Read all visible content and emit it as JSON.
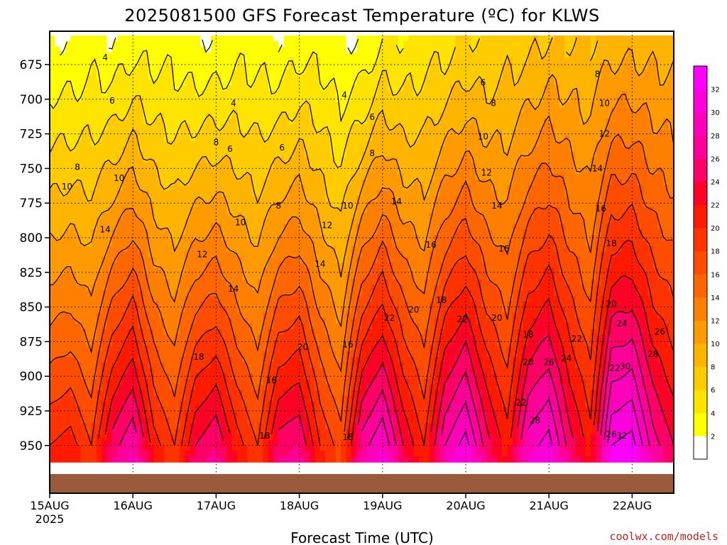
{
  "colors": {
    "ground": "#9c5a3c",
    "background": "#ffffff",
    "credit": "#c41e1e",
    "contour": "#000000",
    "scale": [
      "#ffffff",
      "#ffff00",
      "#ffe400",
      "#ffcc00",
      "#ffb400",
      "#ff9a00",
      "#ff8000",
      "#ff6600",
      "#ff4d00",
      "#ff3300",
      "#ff1a00",
      "#ff0026",
      "#ff0066",
      "#ff0099",
      "#ff00bb",
      "#ff00dd",
      "#ff00ff"
    ]
  },
  "chart_data": {
    "type": "heatmap",
    "title": "2025081500 GFS Forecast Temperature (ºC) for KLWS",
    "xlabel": "Forecast Time (UTC)",
    "ylabel": "",
    "credit": "coolwx.com/models",
    "x_ticks": [
      {
        "label": "15AUG",
        "sub": "2025",
        "t": 0
      },
      {
        "label": "16AUG",
        "t": 24
      },
      {
        "label": "17AUG",
        "t": 48
      },
      {
        "label": "18AUG",
        "t": 72
      },
      {
        "label": "19AUG",
        "t": 96
      },
      {
        "label": "20AUG",
        "t": 120
      },
      {
        "label": "21AUG",
        "t": 144
      },
      {
        "label": "22AUG",
        "t": 168
      }
    ],
    "x_range_hours": [
      0,
      180
    ],
    "y_ticks": [
      675,
      700,
      725,
      750,
      775,
      800,
      825,
      850,
      875,
      900,
      925,
      950
    ],
    "y_range_hpa": [
      654,
      961
    ],
    "colorbar": {
      "levels": [
        0,
        2,
        4,
        6,
        8,
        10,
        12,
        14,
        16,
        18,
        20,
        22,
        24,
        26,
        28,
        30,
        32,
        34
      ],
      "labels": [
        "2",
        "4",
        "6",
        "8",
        "10",
        "12",
        "14",
        "16",
        "18",
        "20",
        "22",
        "24",
        "26",
        "28",
        "30",
        "32"
      ]
    },
    "contour_interval": 2,
    "grid": true,
    "legend": "right",
    "surface_pressure_hpa": 948,
    "temperature_model": {
      "description": "",
      "keyframes_hours": [
        0,
        6,
        12,
        18,
        24,
        30,
        36,
        42,
        48,
        54,
        60,
        66,
        72,
        78,
        84,
        90,
        96,
        102,
        108,
        114,
        120,
        126,
        132,
        138,
        144,
        150,
        156,
        162,
        168,
        174,
        180
      ],
      "t_at_950": [
        20,
        21,
        18,
        25,
        28,
        21,
        18,
        24,
        26,
        21,
        18,
        25,
        26,
        20,
        17,
        27,
        30,
        24,
        20,
        28,
        31,
        25,
        21,
        29,
        31,
        25,
        21,
        32,
        33,
        27,
        24
      ],
      "t_at_660": [
        2,
        2,
        3,
        2,
        3,
        3,
        3,
        2,
        2,
        3,
        3,
        2,
        3,
        3,
        2,
        2,
        4,
        4,
        5,
        5,
        6,
        6,
        7,
        7,
        8,
        8,
        8,
        9,
        9,
        9,
        9
      ]
    },
    "contour_labels": [
      {
        "text": "4",
        "t": 16,
        "p": 670
      },
      {
        "text": "6",
        "t": 18,
        "p": 701
      },
      {
        "text": "8",
        "t": 8,
        "p": 749
      },
      {
        "text": "10",
        "t": 5,
        "p": 763
      },
      {
        "text": "10",
        "t": 20,
        "p": 757
      },
      {
        "text": "14",
        "t": 16,
        "p": 794
      },
      {
        "text": "4",
        "t": 53,
        "p": 703
      },
      {
        "text": "8",
        "t": 48,
        "p": 731
      },
      {
        "text": "6",
        "t": 52,
        "p": 736
      },
      {
        "text": "6",
        "t": 67,
        "p": 735
      },
      {
        "text": "10",
        "t": 55,
        "p": 789
      },
      {
        "text": "12",
        "t": 44,
        "p": 812
      },
      {
        "text": "14",
        "t": 53,
        "p": 837
      },
      {
        "text": "8",
        "t": 66,
        "p": 777
      },
      {
        "text": "12",
        "t": 80,
        "p": 791
      },
      {
        "text": "14",
        "t": 78,
        "p": 819
      },
      {
        "text": "10",
        "t": 86,
        "p": 777
      },
      {
        "text": "4",
        "t": 85,
        "p": 697
      },
      {
        "text": "6",
        "t": 93,
        "p": 713
      },
      {
        "text": "8",
        "t": 93,
        "p": 739
      },
      {
        "text": "14",
        "t": 100,
        "p": 774
      },
      {
        "text": "16",
        "t": 110,
        "p": 805
      },
      {
        "text": "16",
        "t": 86,
        "p": 877
      },
      {
        "text": "16",
        "t": 64,
        "p": 903
      },
      {
        "text": "18",
        "t": 43,
        "p": 886
      },
      {
        "text": "20",
        "t": 73,
        "p": 879
      },
      {
        "text": "22",
        "t": 98,
        "p": 858
      },
      {
        "text": "20",
        "t": 105,
        "p": 852
      },
      {
        "text": "18",
        "t": 113,
        "p": 845
      },
      {
        "text": "22",
        "t": 119,
        "p": 859
      },
      {
        "text": "20",
        "t": 129,
        "p": 858
      },
      {
        "text": "6",
        "t": 125,
        "p": 688
      },
      {
        "text": "8",
        "t": 128,
        "p": 703
      },
      {
        "text": "10",
        "t": 125,
        "p": 727
      },
      {
        "text": "12",
        "t": 126,
        "p": 753
      },
      {
        "text": "14",
        "t": 129,
        "p": 777
      },
      {
        "text": "16",
        "t": 131,
        "p": 808
      },
      {
        "text": "18",
        "t": 138,
        "p": 870
      },
      {
        "text": "20",
        "t": 138,
        "p": 890
      },
      {
        "text": "22",
        "t": 136,
        "p": 919
      },
      {
        "text": "28",
        "t": 140,
        "p": 932
      },
      {
        "text": "26",
        "t": 144,
        "p": 890
      },
      {
        "text": "24",
        "t": 149,
        "p": 887
      },
      {
        "text": "22",
        "t": 152,
        "p": 873
      },
      {
        "text": "8",
        "t": 158,
        "p": 682
      },
      {
        "text": "10",
        "t": 160,
        "p": 703
      },
      {
        "text": "12",
        "t": 160,
        "p": 725
      },
      {
        "text": "14",
        "t": 158,
        "p": 750
      },
      {
        "text": "16",
        "t": 159,
        "p": 779
      },
      {
        "text": "18",
        "t": 162,
        "p": 804
      },
      {
        "text": "20",
        "t": 162,
        "p": 848
      },
      {
        "text": "24",
        "t": 165,
        "p": 862
      },
      {
        "text": "26",
        "t": 176,
        "p": 868
      },
      {
        "text": "28",
        "t": 174,
        "p": 884
      },
      {
        "text": "22",
        "t": 163,
        "p": 894
      },
      {
        "text": "30",
        "t": 166,
        "p": 893
      },
      {
        "text": "26",
        "t": 162,
        "p": 942
      },
      {
        "text": "32",
        "t": 165,
        "p": 943
      },
      {
        "text": "18",
        "t": 62,
        "p": 943
      },
      {
        "text": "18",
        "t": 86,
        "p": 944
      }
    ]
  }
}
